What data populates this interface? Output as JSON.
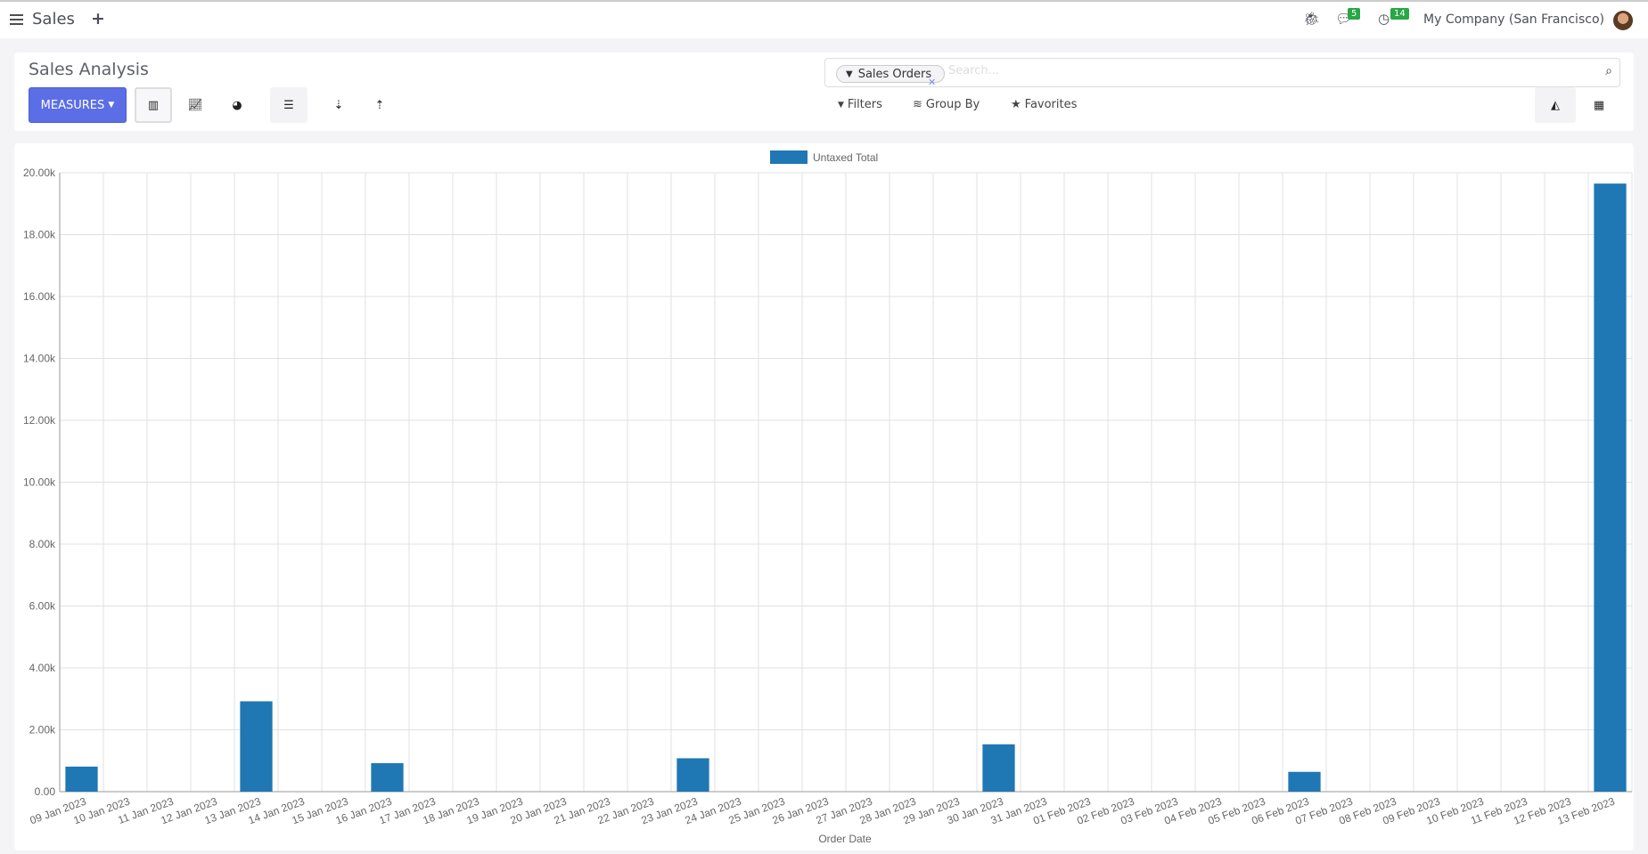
{
  "topbar": {
    "app_title": "Sales",
    "chat_count": "5",
    "activity_count": "14",
    "company": "My Company (San Francisco)"
  },
  "control": {
    "title": "Sales Analysis",
    "measures_label": "MEASURES",
    "search_facet": "Sales Orders",
    "search_placeholder": "Search...",
    "filters": "Filters",
    "group_by": "Group By",
    "favorites": "Favorites"
  },
  "colors": {
    "bar": "#1f77b4",
    "measures": "#5b6ee6",
    "badge": "#28a745"
  },
  "chart_data": {
    "type": "bar",
    "legend": "Untaxed Total",
    "legend_position": "top",
    "xlabel": "Order Date",
    "ylabel": "",
    "ylim": [
      0,
      20000
    ],
    "grid": true,
    "yticks": [
      "0.00",
      "2.00k",
      "4.00k",
      "6.00k",
      "8.00k",
      "10.00k",
      "12.00k",
      "14.00k",
      "16.00k",
      "18.00k",
      "20.00k"
    ],
    "categories": [
      "09 Jan 2023",
      "10 Jan 2023",
      "11 Jan 2023",
      "12 Jan 2023",
      "13 Jan 2023",
      "14 Jan 2023",
      "15 Jan 2023",
      "16 Jan 2023",
      "17 Jan 2023",
      "18 Jan 2023",
      "19 Jan 2023",
      "20 Jan 2023",
      "21 Jan 2023",
      "22 Jan 2023",
      "23 Jan 2023",
      "24 Jan 2023",
      "25 Jan 2023",
      "26 Jan 2023",
      "27 Jan 2023",
      "28 Jan 2023",
      "29 Jan 2023",
      "30 Jan 2023",
      "31 Jan 2023",
      "01 Feb 2023",
      "02 Feb 2023",
      "03 Feb 2023",
      "04 Feb 2023",
      "05 Feb 2023",
      "06 Feb 2023",
      "07 Feb 2023",
      "08 Feb 2023",
      "09 Feb 2023",
      "10 Feb 2023",
      "11 Feb 2023",
      "12 Feb 2023",
      "13 Feb 2023"
    ],
    "values": [
      810,
      0,
      0,
      0,
      2920,
      0,
      0,
      920,
      0,
      0,
      0,
      0,
      0,
      0,
      1080,
      0,
      0,
      0,
      0,
      0,
      0,
      1530,
      0,
      0,
      0,
      0,
      0,
      0,
      640,
      0,
      0,
      0,
      0,
      0,
      0,
      19650
    ]
  }
}
